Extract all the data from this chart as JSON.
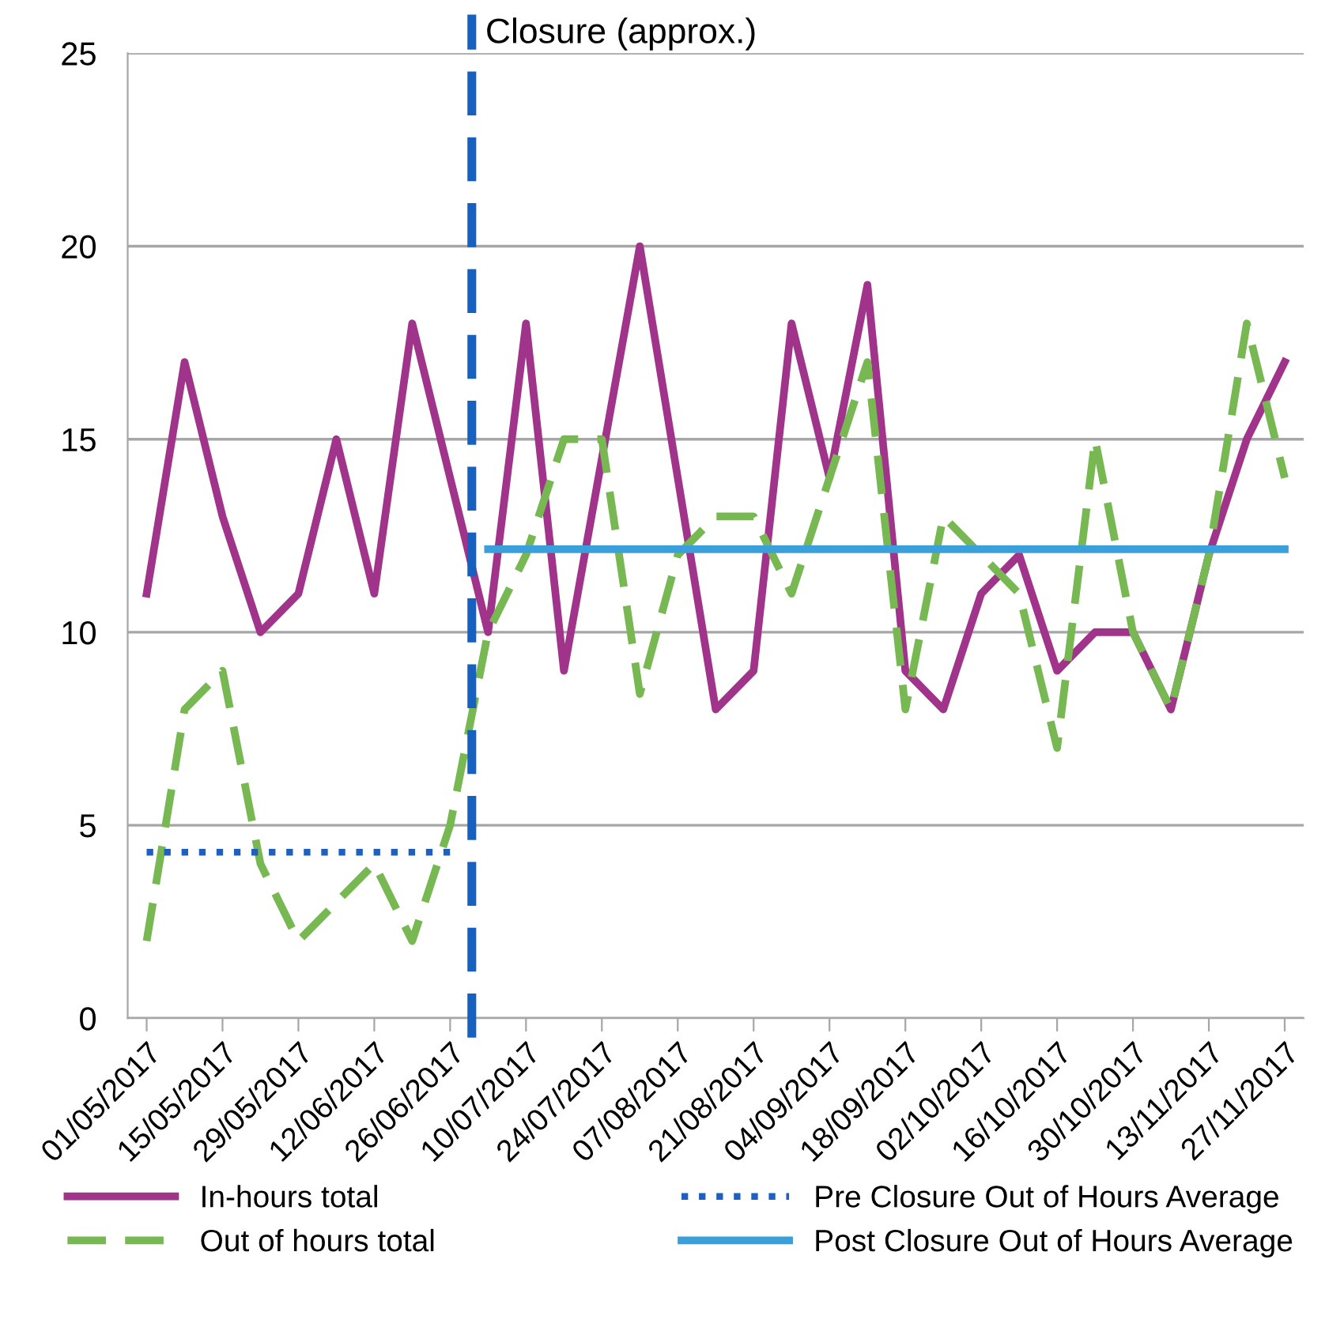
{
  "chart_data": {
    "type": "line",
    "x": [
      "2017-05-01",
      "2017-05-08",
      "2017-05-15",
      "2017-05-22",
      "2017-05-29",
      "2017-06-05",
      "2017-06-12",
      "2017-06-19",
      "2017-06-26",
      "2017-07-03",
      "2017-07-10",
      "2017-07-17",
      "2017-07-24",
      "2017-07-31",
      "2017-08-07",
      "2017-08-14",
      "2017-08-21",
      "2017-08-28",
      "2017-09-04",
      "2017-09-11",
      "2017-09-18",
      "2017-09-25",
      "2017-10-02",
      "2017-10-09",
      "2017-10-16",
      "2017-10-23",
      "2017-10-30",
      "2017-11-06",
      "2017-11-13",
      "2017-11-20",
      "2017-11-27"
    ],
    "series": [
      {
        "name": "In-hours total",
        "color": "#a0338a",
        "line_style": "solid",
        "values": [
          11,
          17,
          13,
          10,
          11,
          15,
          11,
          18,
          14,
          10,
          18,
          9,
          14.5,
          20,
          14,
          8,
          9,
          18,
          14,
          19,
          9,
          8,
          11,
          12,
          9,
          10,
          10,
          8,
          12,
          15,
          17
        ]
      },
      {
        "name": "Out of hours total",
        "color": "#77b852",
        "line_style": "dashed",
        "values": [
          2,
          8,
          9,
          4,
          2,
          3,
          4,
          2,
          5,
          10,
          12,
          15,
          15,
          8.4,
          12,
          13,
          13,
          11,
          14,
          17,
          8,
          13,
          12,
          11,
          7,
          15,
          10,
          8,
          12,
          18,
          14
        ]
      },
      {
        "name": "Pre Closure Out of Hours Average",
        "color": "#1f5fbf",
        "line_style": "dotted",
        "values": [
          4.3,
          4.3,
          4.3,
          4.3,
          4.3,
          4.3,
          4.3,
          4.3,
          4.3,
          null,
          null,
          null,
          null,
          null,
          null,
          null,
          null,
          null,
          null,
          null,
          null,
          null,
          null,
          null,
          null,
          null,
          null,
          null,
          null,
          null,
          null
        ]
      },
      {
        "name": "Post Closure Out of Hours Average",
        "color": "#3aa0dc",
        "line_style": "solid",
        "values": [
          null,
          null,
          null,
          null,
          null,
          null,
          null,
          null,
          null,
          12.15,
          12.15,
          12.15,
          12.15,
          12.15,
          12.15,
          12.15,
          12.15,
          12.15,
          12.15,
          12.15,
          12.15,
          12.15,
          12.15,
          12.15,
          12.15,
          12.15,
          12.15,
          12.15,
          12.15,
          12.15,
          12.15
        ]
      }
    ],
    "xlim": [
      "2017-04-27T12:00",
      "2017-11-30T12:00"
    ],
    "xticks": [
      {
        "value": "2017-05-01",
        "label": "01/05/2017"
      },
      {
        "value": "2017-05-15",
        "label": "15/05/2017"
      },
      {
        "value": "2017-05-29",
        "label": "29/05/2017"
      },
      {
        "value": "2017-06-12",
        "label": "12/06/2017"
      },
      {
        "value": "2017-06-26",
        "label": "26/06/2017"
      },
      {
        "value": "2017-07-10",
        "label": "10/07/2017"
      },
      {
        "value": "2017-07-24",
        "label": "24/07/2017"
      },
      {
        "value": "2017-08-07",
        "label": "07/08/2017"
      },
      {
        "value": "2017-08-21",
        "label": "21/08/2017"
      },
      {
        "value": "2017-09-04",
        "label": "04/09/2017"
      },
      {
        "value": "2017-09-18",
        "label": "18/09/2017"
      },
      {
        "value": "2017-10-02",
        "label": "02/10/2017"
      },
      {
        "value": "2017-10-16",
        "label": "16/10/2017"
      },
      {
        "value": "2017-10-30",
        "label": "30/10/2017"
      },
      {
        "value": "2017-11-13",
        "label": "13/11/2017"
      },
      {
        "value": "2017-11-27",
        "label": "27/11/2017"
      }
    ],
    "ylim": [
      0,
      25
    ],
    "yticks": [
      0,
      5,
      10,
      15,
      20,
      25
    ],
    "ref_lines": [
      {
        "axis": "x",
        "value": "2017-06-30",
        "label": "Closure (approx.)",
        "color": "#1660c0",
        "line_style": "dashed"
      }
    ],
    "grid": "y",
    "legend": "bottom",
    "marker": "none"
  }
}
